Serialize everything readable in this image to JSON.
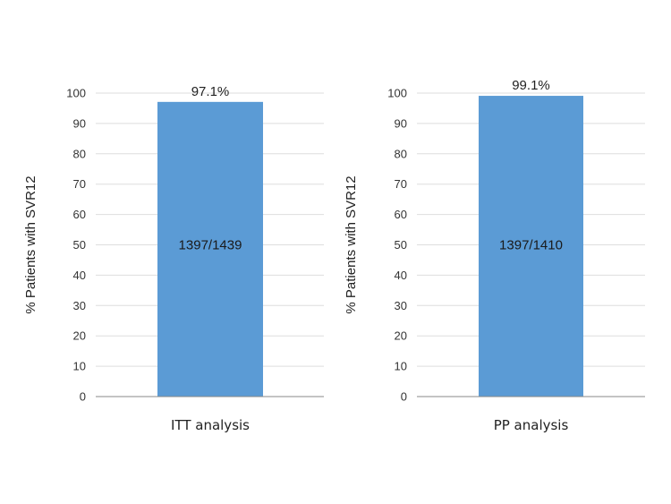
{
  "chart_data": [
    {
      "type": "bar",
      "categories": [
        "ITT analysis"
      ],
      "values": [
        97.1
      ],
      "ylabel": "% Patients with SVR12",
      "xlabel": "",
      "ylim": [
        0,
        100
      ],
      "yticks": [
        0,
        10,
        20,
        30,
        40,
        50,
        60,
        70,
        80,
        90,
        100
      ],
      "top_label": "97.1%",
      "bar_label": "1397/1439",
      "grid": true,
      "bar_color": "#5b9bd5"
    },
    {
      "type": "bar",
      "categories": [
        "PP analysis"
      ],
      "values": [
        99.1
      ],
      "ylabel": "% Patients with SVR12",
      "xlabel": "",
      "ylim": [
        0,
        100
      ],
      "yticks": [
        0,
        10,
        20,
        30,
        40,
        50,
        60,
        70,
        80,
        90,
        100
      ],
      "top_label": "99.1%",
      "bar_label": "1397/1410",
      "grid": true,
      "bar_color": "#5b9bd5"
    }
  ]
}
